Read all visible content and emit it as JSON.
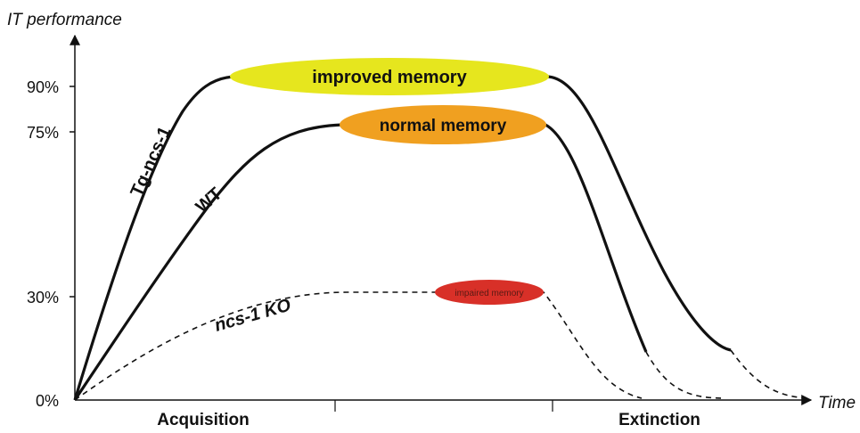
{
  "axes": {
    "y_title": "IT performance",
    "x_title": "Time",
    "y_ticks": [
      "90%",
      "75%",
      "30%",
      "0%"
    ],
    "phases": [
      "Acquisition",
      "Extinction"
    ]
  },
  "curves": {
    "tg": "Tg-ncs-1",
    "wt": "WT",
    "ko": "ncs-1 KO"
  },
  "labels": {
    "improved": "improved memory",
    "normal": "normal memory",
    "impaired": "impaired memory"
  },
  "colors": {
    "improved": "#e6e61e",
    "normal": "#f0a020",
    "impaired": "#d83028",
    "line": "#111111"
  }
}
